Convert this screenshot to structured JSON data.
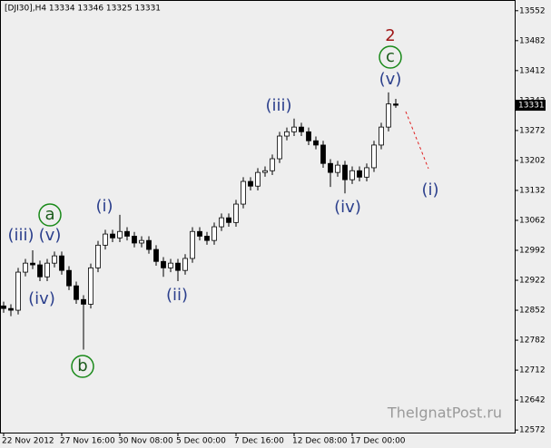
{
  "chart_data": {
    "type": "candlestick",
    "title": "[DJI30],H4  13334 13346 13325 13331",
    "watermark": "TheIgnatPost.ru",
    "categories": [
      "22 Nov 2012",
      null,
      null,
      null,
      null,
      null,
      null,
      null,
      "27 Nov 16:00",
      null,
      null,
      null,
      null,
      null,
      null,
      null,
      "30 Nov 08:00",
      null,
      null,
      null,
      null,
      null,
      null,
      null,
      "5 Dec 00:00",
      null,
      null,
      null,
      null,
      null,
      null,
      null,
      "7 Dec 16:00",
      null,
      null,
      null,
      null,
      null,
      null,
      null,
      "12 Dec 08:00",
      null,
      null,
      null,
      null,
      null,
      null,
      null,
      "17 Dec 00:00",
      null,
      null,
      null,
      null,
      null,
      null
    ],
    "open": [
      12862,
      12856,
      12852,
      12941,
      12962,
      12958,
      12930,
      12962,
      12979,
      12945,
      12909,
      12877,
      12866,
      12951,
      13004,
      13030,
      13021,
      13036,
      13025,
      13009,
      13015,
      12994,
      12966,
      12951,
      12962,
      12945,
      12973,
      13036,
      13025,
      13015,
      13047,
      13068,
      13057,
      13100,
      13153,
      13142,
      13174,
      13178,
      13206,
      13259,
      13269,
      13280,
      13269,
      13248,
      13238,
      13195,
      13174,
      13191,
      13157,
      13178,
      13163,
      13185,
      13238,
      13280,
      13334
    ],
    "high": [
      12872,
      12866,
      12951,
      12972,
      12992,
      12968,
      12972,
      12989,
      12989,
      12955,
      12919,
      12887,
      12961,
      13014,
      13040,
      13040,
      13075,
      13046,
      13035,
      13025,
      13025,
      13004,
      12976,
      12972,
      12972,
      12983,
      13046,
      13046,
      13035,
      13057,
      13078,
      13078,
      13110,
      13163,
      13163,
      13184,
      13188,
      13216,
      13269,
      13279,
      13300,
      13290,
      13279,
      13258,
      13248,
      13205,
      13201,
      13201,
      13188,
      13188,
      13195,
      13248,
      13290,
      13361,
      13346
    ],
    "low": [
      12846,
      12838,
      12842,
      12931,
      12948,
      12920,
      12920,
      12952,
      12935,
      12899,
      12867,
      12760,
      12856,
      12941,
      12994,
      13011,
      13011,
      13015,
      12999,
      12999,
      12984,
      12956,
      12930,
      12941,
      12920,
      12935,
      12963,
      13015,
      13005,
      13005,
      13037,
      13047,
      13047,
      13090,
      13132,
      13132,
      13164,
      13168,
      13196,
      13249,
      13259,
      13259,
      13238,
      13228,
      13185,
      13140,
      13164,
      13125,
      13147,
      13153,
      13153,
      13175,
      13228,
      13270,
      13325
    ],
    "close": [
      12856,
      12852,
      12941,
      12962,
      12958,
      12930,
      12962,
      12979,
      12945,
      12909,
      12877,
      12866,
      12951,
      13004,
      13030,
      13021,
      13036,
      13025,
      13009,
      13015,
      12994,
      12966,
      12951,
      12962,
      12945,
      12973,
      13036,
      13025,
      13015,
      13047,
      13068,
      13057,
      13100,
      13153,
      13142,
      13174,
      13178,
      13206,
      13259,
      13269,
      13280,
      13269,
      13248,
      13238,
      13195,
      13174,
      13191,
      13157,
      13178,
      13163,
      13185,
      13238,
      13280,
      13334,
      13331
    ],
    "up_color": "#ffffff",
    "down_color": "#000000",
    "ylim": [
      12566,
      13577
    ],
    "yticks": [
      12572,
      12642,
      12712,
      12782,
      12852,
      12922,
      12992,
      13062,
      13132,
      13202,
      13272,
      13342,
      13412,
      13482,
      13552
    ],
    "annotations": [
      "(iii)",
      "(v)",
      "(iv)",
      "a",
      "b",
      "(i)",
      "(ii)",
      "(iii)",
      "(iv)",
      "2",
      "c",
      "(v)",
      "(i)"
    ]
  }
}
